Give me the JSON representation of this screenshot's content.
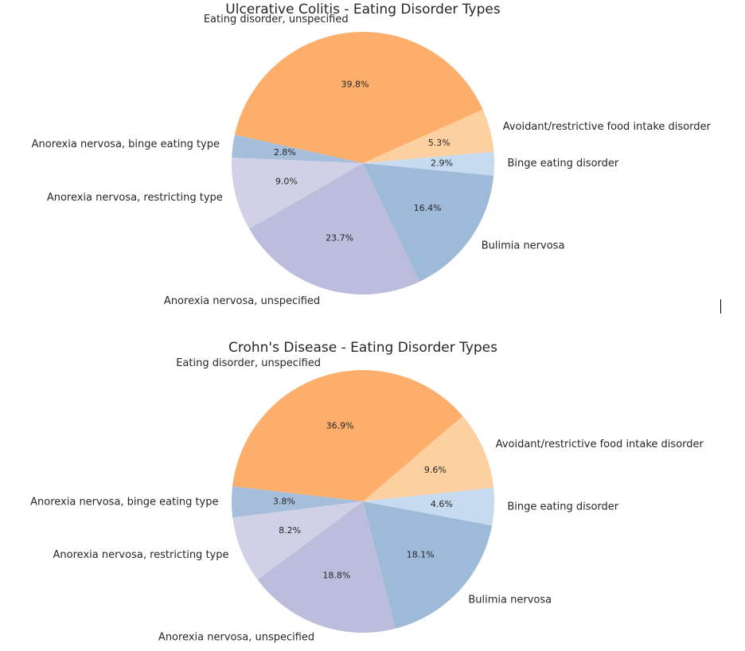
{
  "chart_data": [
    {
      "type": "pie",
      "title": "Ulcerative Colitis - Eating Disorder Types",
      "start_angle_deg": 5,
      "direction": "counterclockwise",
      "slices": [
        {
          "label": "Avoidant/restrictive food intake disorder",
          "value": 5.3,
          "pct_label": "5.3%",
          "color": "#fdd0a2"
        },
        {
          "label": "Eating disorder, unspecified",
          "value": 39.8,
          "pct_label": "39.8%",
          "color": "#fdae6b"
        },
        {
          "label": "Anorexia nervosa, binge eating type",
          "value": 2.8,
          "pct_label": "2.8%",
          "color": "#a6bddb"
        },
        {
          "label": "Anorexia nervosa, restricting type",
          "value": 9.0,
          "pct_label": "9.0%",
          "color": "#d0d1e6"
        },
        {
          "label": "Anorexia nervosa, unspecified",
          "value": 23.7,
          "pct_label": "23.7%",
          "color": "#bcbddc"
        },
        {
          "label": "Bulimia nervosa",
          "value": 16.4,
          "pct_label": "16.4%",
          "color": "#9ebad9"
        },
        {
          "label": "Binge eating disorder",
          "value": 2.9,
          "pct_label": "2.9%",
          "color": "#c6dbef"
        }
      ]
    },
    {
      "type": "pie",
      "title": "Crohn's Disease - Eating Disorder Types",
      "start_angle_deg": 6,
      "direction": "counterclockwise",
      "slices": [
        {
          "label": "Avoidant/restrictive food intake disorder",
          "value": 9.6,
          "pct_label": "9.6%",
          "color": "#fdd0a2"
        },
        {
          "label": "Eating disorder, unspecified",
          "value": 36.9,
          "pct_label": "36.9%",
          "color": "#fdae6b"
        },
        {
          "label": "Anorexia nervosa, binge eating type",
          "value": 3.8,
          "pct_label": "3.8%",
          "color": "#a6bddb"
        },
        {
          "label": "Anorexia nervosa, restricting type",
          "value": 8.2,
          "pct_label": "8.2%",
          "color": "#d0d1e6"
        },
        {
          "label": "Anorexia nervosa, unspecified",
          "value": 18.8,
          "pct_label": "18.8%",
          "color": "#bcbddc"
        },
        {
          "label": "Bulimia nervosa",
          "value": 18.1,
          "pct_label": "18.1%",
          "color": "#9ebad9"
        },
        {
          "label": "Binge eating disorder",
          "value": 4.6,
          "pct_label": "4.6%",
          "color": "#c6dbef"
        }
      ]
    }
  ]
}
